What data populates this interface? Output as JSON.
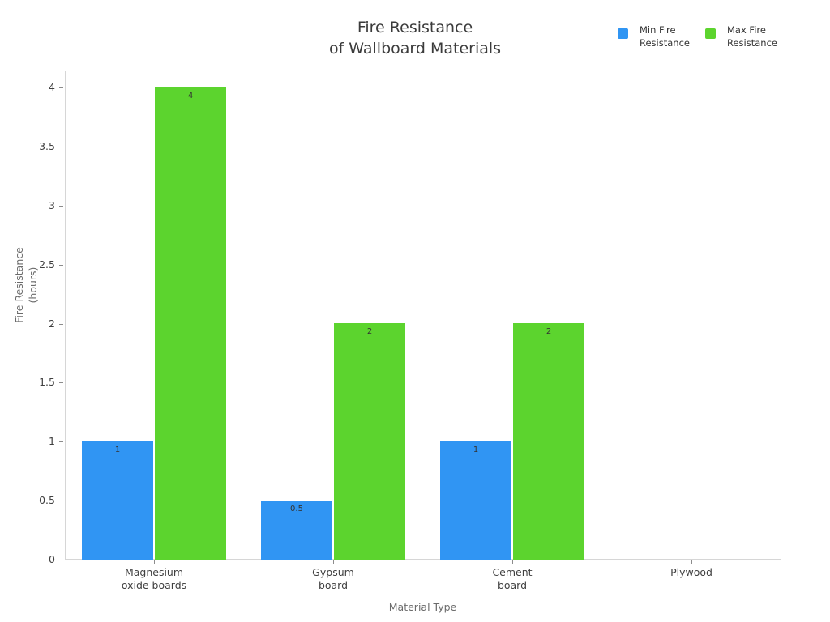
{
  "chart_data": {
    "type": "bar",
    "title": "Fire Resistance\nof Wallboard Materials",
    "xlabel": "Material Type",
    "ylabel": "Fire Resistance\n(hours)",
    "categories": [
      "Magnesium\noxide boards",
      "Gypsum\nboard",
      "Cement\nboard",
      "Plywood"
    ],
    "series": [
      {
        "name": "Min Fire\nResistance",
        "color": "#3095f3",
        "values": [
          1,
          0.5,
          1,
          0
        ]
      },
      {
        "name": "Max Fire\nResistance",
        "color": "#5cd42e",
        "values": [
          4,
          2,
          2,
          0
        ]
      }
    ],
    "yticks": [
      0,
      0.5,
      1,
      1.5,
      2,
      2.5,
      3,
      3.5,
      4
    ],
    "ylim": [
      0,
      4
    ],
    "grid": false,
    "legend_position": "top-right",
    "value_labels": true
  },
  "colors": {
    "background": "#ffffff",
    "axis_line": "#d6d6d6",
    "tick_mark": "#8c8c8c",
    "title_text": "#3b3b3b",
    "tick_label_text": "#404040",
    "axis_title_text": "#6b6b6b",
    "value_label_text": "#333333"
  }
}
